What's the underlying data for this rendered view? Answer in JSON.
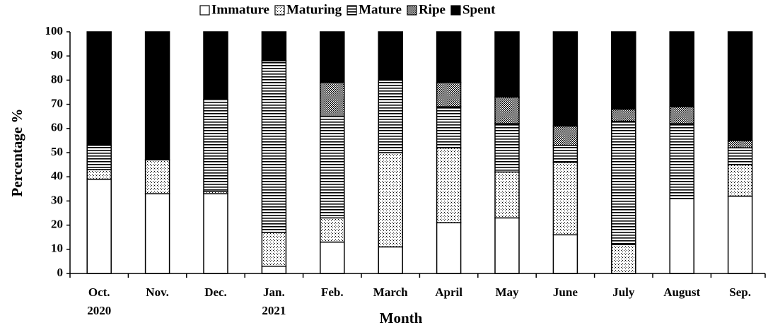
{
  "chart_data": {
    "type": "stacked_bar",
    "x_label": "Month",
    "y_label": "Percentage %",
    "categories": [
      "Oct.\n2020",
      "Nov.",
      "Dec.",
      "Jan.\n2021",
      "Feb.",
      "March",
      "April",
      "May",
      "June",
      "July",
      "August",
      "Sep."
    ],
    "series": [
      {
        "name": "Immature",
        "color": "#ffffff",
        "pattern": "solid",
        "values": [
          39,
          33,
          33,
          3,
          13,
          11,
          21,
          23,
          16,
          0,
          31,
          32
        ]
      },
      {
        "name": "Maturing",
        "color": "#000000",
        "pattern": "dots",
        "values": [
          4,
          14,
          1,
          14,
          10,
          39,
          31,
          19,
          30,
          12,
          0,
          13
        ]
      },
      {
        "name": "Mature",
        "color": "#000000",
        "pattern": "hlines",
        "values": [
          10,
          0,
          38,
          71,
          42,
          30,
          17,
          20,
          7,
          51,
          31,
          7
        ]
      },
      {
        "name": "Ripe",
        "color": "#000000",
        "pattern": "checker",
        "values": [
          0,
          0,
          0,
          0,
          14,
          0,
          10,
          11,
          8,
          5,
          7,
          3
        ]
      },
      {
        "name": "Spent",
        "color": "#000000",
        "pattern": "fill",
        "values": [
          47,
          53,
          28,
          12,
          21,
          20,
          21,
          27,
          39,
          32,
          31,
          45
        ]
      }
    ],
    "ylim": [
      0,
      100
    ],
    "yticks": [
      0,
      10,
      20,
      30,
      40,
      50,
      60,
      70,
      80,
      90,
      100
    ],
    "grid": false,
    "legend": "top"
  }
}
